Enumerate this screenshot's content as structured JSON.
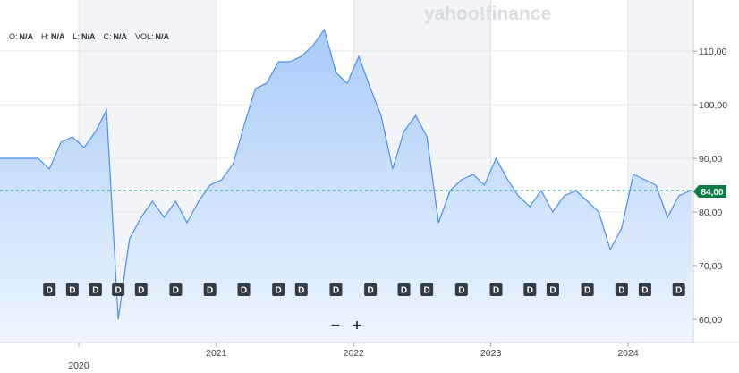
{
  "watermark": "yahoo!finance",
  "ohlc": [
    {
      "key": "O:",
      "value": "N/A"
    },
    {
      "key": "H:",
      "value": "N/A"
    },
    {
      "key": "L:",
      "value": "N/A"
    },
    {
      "key": "C:",
      "value": "N/A"
    },
    {
      "key": "VOL:",
      "value": "N/A"
    }
  ],
  "zoom": {
    "out_label": "−",
    "in_label": "+"
  },
  "colors": {
    "line": "#4a90f0",
    "fill_top": "#a9cbf8",
    "fill_bottom": "#eef5fe",
    "price_tag": "#0a7d46",
    "event_marker": "#323a45",
    "grid": "#e8e8e8",
    "band": "#f2f4f8"
  },
  "chart_data": {
    "type": "area",
    "title": "",
    "xlabel": "",
    "ylabel": "",
    "ylim": [
      55,
      122
    ],
    "y_ticks": [
      "60,00",
      "70,00",
      "80,00",
      "90,00",
      "100,00",
      "110,00"
    ],
    "x_ticks": [
      "2020",
      "2021",
      "2022",
      "2023",
      "2024"
    ],
    "current_price": 84.0,
    "current_price_label": "84,00",
    "event_marker_label": "D",
    "event_markers": [
      "2019-10",
      "2019-12",
      "2020-02",
      "2020-04",
      "2020-06",
      "2020-09",
      "2020-12",
      "2021-03",
      "2021-06",
      "2021-08",
      "2021-11",
      "2022-02",
      "2022-05",
      "2022-07",
      "2022-10",
      "2023-01",
      "2023-04",
      "2023-06",
      "2023-09",
      "2023-12",
      "2024-02",
      "2024-05"
    ],
    "x": [
      "2019-09",
      "2019-10",
      "2019-11",
      "2019-12",
      "2020-01",
      "2020-02",
      "2020-03",
      "2020-04",
      "2020-05",
      "2020-06",
      "2020-07",
      "2020-08",
      "2020-09",
      "2020-10",
      "2020-11",
      "2020-12",
      "2021-01",
      "2021-02",
      "2021-03",
      "2021-04",
      "2021-05",
      "2021-06",
      "2021-07",
      "2021-08",
      "2021-09",
      "2021-10",
      "2021-11",
      "2021-12",
      "2022-01",
      "2022-02",
      "2022-03",
      "2022-04",
      "2022-05",
      "2022-06",
      "2022-07",
      "2022-08",
      "2022-09",
      "2022-10",
      "2022-11",
      "2022-12",
      "2023-01",
      "2023-02",
      "2023-03",
      "2023-04",
      "2023-05",
      "2023-06",
      "2023-07",
      "2023-08",
      "2023-09",
      "2023-10",
      "2023-11",
      "2023-12",
      "2024-01",
      "2024-02",
      "2024-03",
      "2024-04",
      "2024-05",
      "2024-06"
    ],
    "series": [
      {
        "values": [
          90,
          88,
          93,
          94,
          92,
          95,
          99,
          60,
          75,
          79,
          82,
          79,
          82,
          78,
          82,
          85,
          86,
          89,
          96,
          103,
          104,
          108,
          108,
          109,
          111,
          114,
          106,
          104,
          109,
          103,
          98,
          88,
          95,
          98,
          94,
          78,
          84,
          86,
          87,
          85,
          90,
          86,
          83,
          81,
          84,
          80,
          83,
          84,
          82,
          80,
          73,
          77,
          87,
          86,
          85,
          79,
          83,
          84
        ]
      }
    ]
  }
}
